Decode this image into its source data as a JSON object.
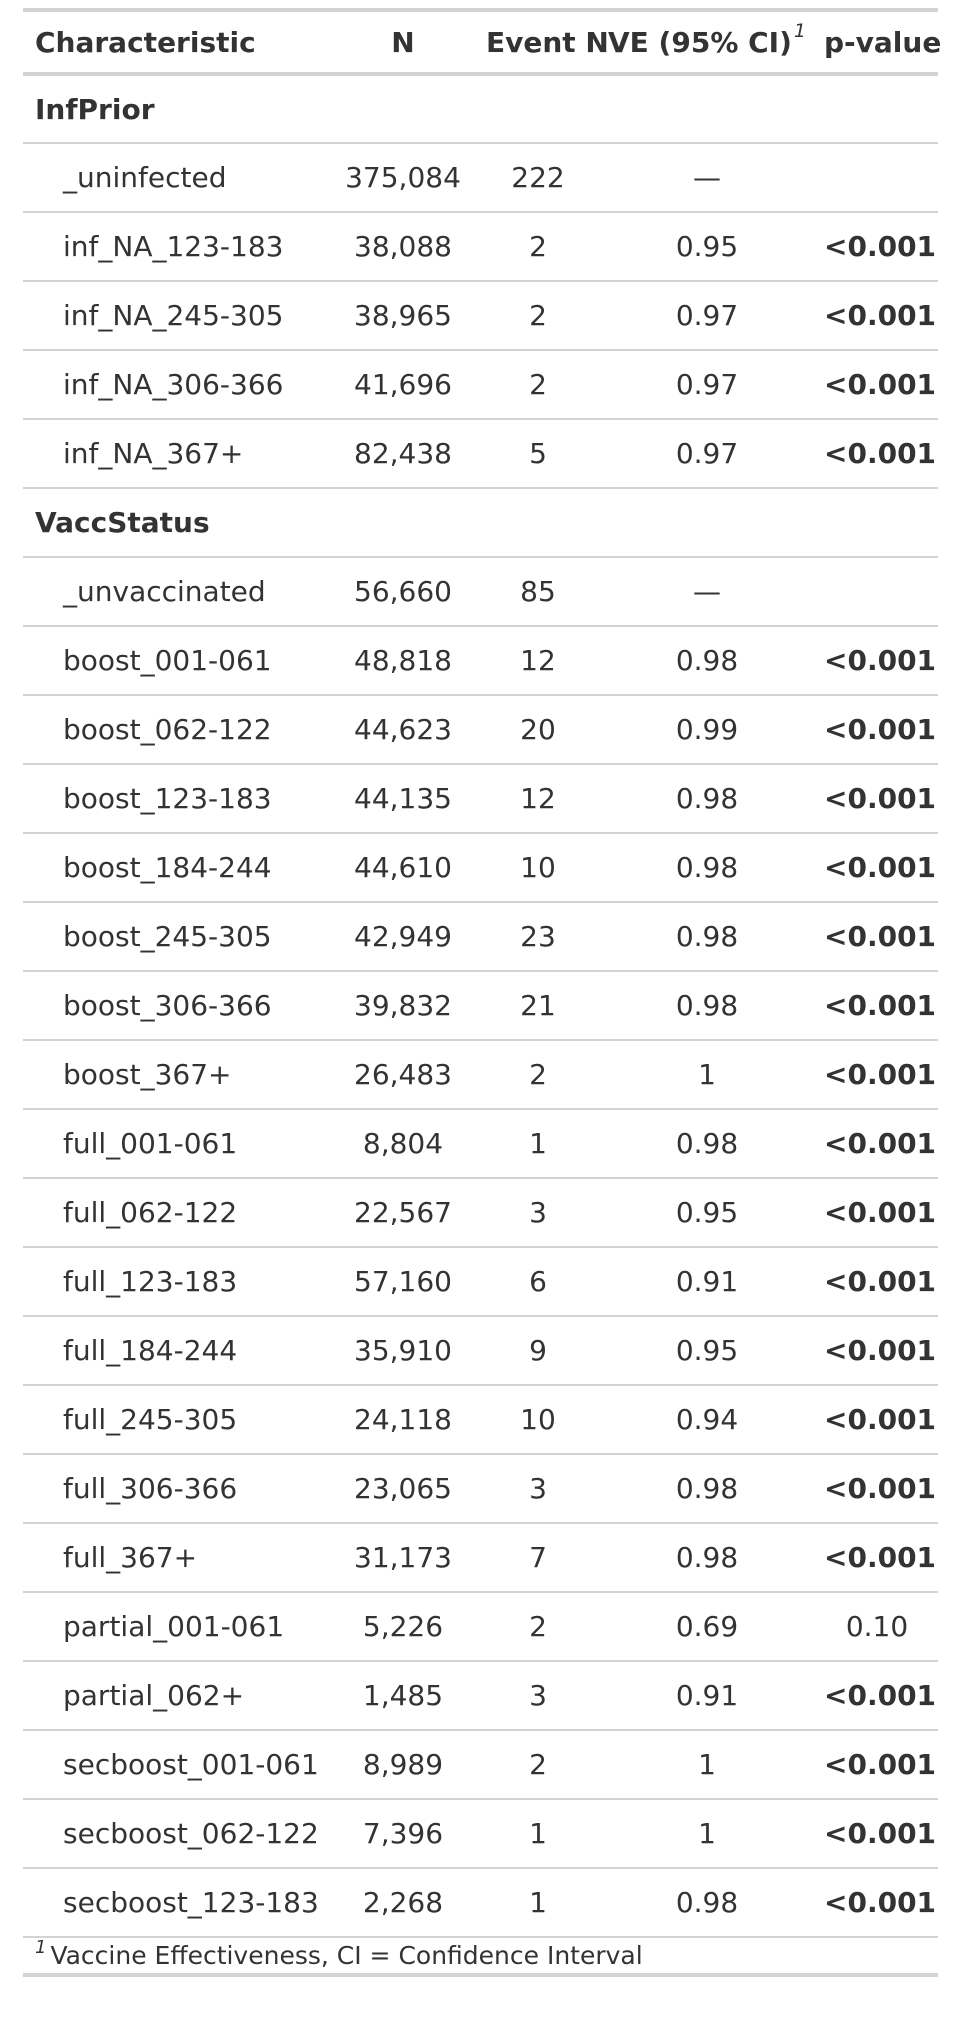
{
  "table": {
    "headers": {
      "characteristic": "Characteristic",
      "n": "N",
      "event_n": "Event N",
      "ve": "VE (95% CI)",
      "ve_footnote_marker": "1",
      "p_value": "p-value"
    },
    "groups": [
      {
        "label": "InfPrior",
        "rows": [
          {
            "label": "_uninfected",
            "n": "375,084",
            "event_n": "222",
            "ve": "—",
            "p": ""
          },
          {
            "label": "inf_NA_123-183",
            "n": "38,088",
            "event_n": "2",
            "ve": "0.95",
            "p": "<0.001"
          },
          {
            "label": "inf_NA_245-305",
            "n": "38,965",
            "event_n": "2",
            "ve": "0.97",
            "p": "<0.001"
          },
          {
            "label": "inf_NA_306-366",
            "n": "41,696",
            "event_n": "2",
            "ve": "0.97",
            "p": "<0.001"
          },
          {
            "label": "inf_NA_367+",
            "n": "82,438",
            "event_n": "5",
            "ve": "0.97",
            "p": "<0.001"
          }
        ]
      },
      {
        "label": "VaccStatus",
        "rows": [
          {
            "label": "_unvaccinated",
            "n": "56,660",
            "event_n": "85",
            "ve": "—",
            "p": ""
          },
          {
            "label": "boost_001-061",
            "n": "48,818",
            "event_n": "12",
            "ve": "0.98",
            "p": "<0.001"
          },
          {
            "label": "boost_062-122",
            "n": "44,623",
            "event_n": "20",
            "ve": "0.99",
            "p": "<0.001"
          },
          {
            "label": "boost_123-183",
            "n": "44,135",
            "event_n": "12",
            "ve": "0.98",
            "p": "<0.001"
          },
          {
            "label": "boost_184-244",
            "n": "44,610",
            "event_n": "10",
            "ve": "0.98",
            "p": "<0.001"
          },
          {
            "label": "boost_245-305",
            "n": "42,949",
            "event_n": "23",
            "ve": "0.98",
            "p": "<0.001"
          },
          {
            "label": "boost_306-366",
            "n": "39,832",
            "event_n": "21",
            "ve": "0.98",
            "p": "<0.001"
          },
          {
            "label": "boost_367+",
            "n": "26,483",
            "event_n": "2",
            "ve": "1",
            "p": "<0.001"
          },
          {
            "label": "full_001-061",
            "n": "8,804",
            "event_n": "1",
            "ve": "0.98",
            "p": "<0.001"
          },
          {
            "label": "full_062-122",
            "n": "22,567",
            "event_n": "3",
            "ve": "0.95",
            "p": "<0.001"
          },
          {
            "label": "full_123-183",
            "n": "57,160",
            "event_n": "6",
            "ve": "0.91",
            "p": "<0.001"
          },
          {
            "label": "full_184-244",
            "n": "35,910",
            "event_n": "9",
            "ve": "0.95",
            "p": "<0.001"
          },
          {
            "label": "full_245-305",
            "n": "24,118",
            "event_n": "10",
            "ve": "0.94",
            "p": "<0.001"
          },
          {
            "label": "full_306-366",
            "n": "23,065",
            "event_n": "3",
            "ve": "0.98",
            "p": "<0.001"
          },
          {
            "label": "full_367+",
            "n": "31,173",
            "event_n": "7",
            "ve": "0.98",
            "p": "<0.001"
          },
          {
            "label": "partial_001-061",
            "n": "5,226",
            "event_n": "2",
            "ve": "0.69",
            "p": "0.10"
          },
          {
            "label": "partial_062+",
            "n": "1,485",
            "event_n": "3",
            "ve": "0.91",
            "p": "<0.001"
          },
          {
            "label": "secboost_001-061",
            "n": "8,989",
            "event_n": "2",
            "ve": "1",
            "p": "<0.001"
          },
          {
            "label": "secboost_062-122",
            "n": "7,396",
            "event_n": "1",
            "ve": "1",
            "p": "<0.001"
          },
          {
            "label": "secboost_123-183",
            "n": "2,268",
            "event_n": "1",
            "ve": "0.98",
            "p": "<0.001"
          }
        ]
      }
    ],
    "footnote": {
      "marker": "1",
      "text": "Vaccine Effectiveness, CI = Confidence Interval"
    }
  },
  "colors": {
    "text": "#333333",
    "rule": "#d3d3d3",
    "background": "#ffffff"
  }
}
